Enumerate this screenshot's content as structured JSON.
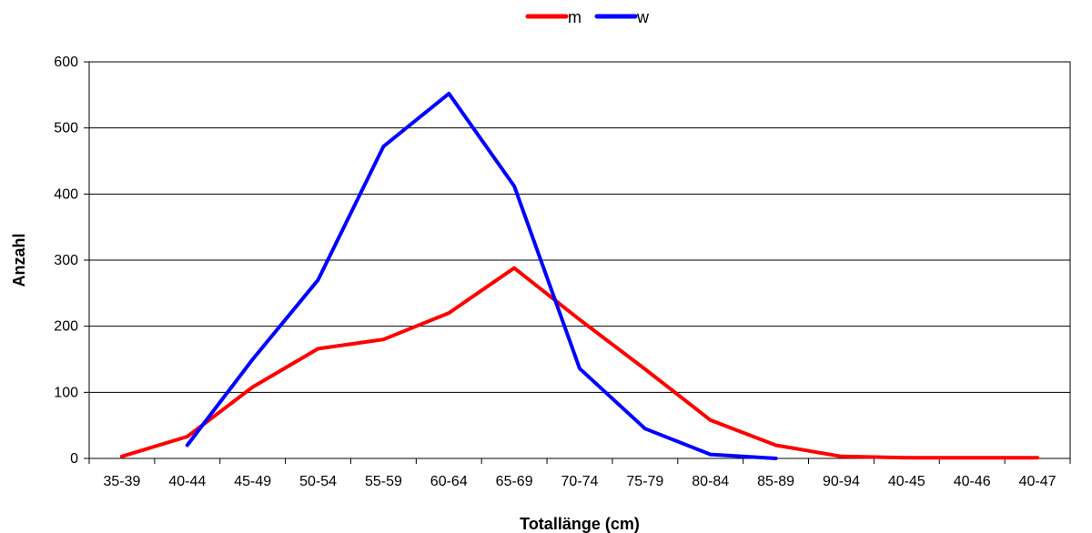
{
  "chart_data": {
    "type": "line",
    "title": "",
    "xlabel": "Totallänge (cm)",
    "ylabel": "Anzahl",
    "categories": [
      "35-39",
      "40-44",
      "45-49",
      "50-54",
      "55-59",
      "60-64",
      "65-69",
      "70-74",
      "75-79",
      "80-84",
      "85-89",
      "90-94",
      "40-45",
      "40-46",
      "40-47"
    ],
    "yticks": [
      "0",
      "100",
      "200",
      "300",
      "400",
      "500",
      "600"
    ],
    "ylim": [
      0,
      600
    ],
    "grid": "horizontal",
    "legend_position": "top-center",
    "series": [
      {
        "name": "m",
        "color": "#ff0000",
        "values": [
          3,
          33,
          108,
          166,
          180,
          220,
          288,
          210,
          135,
          58,
          20,
          3,
          1,
          1,
          1
        ]
      },
      {
        "name": "w",
        "color": "#0000ff",
        "values": [
          null,
          20,
          150,
          270,
          472,
          552,
          412,
          136,
          45,
          6,
          0,
          null,
          null,
          null,
          null
        ]
      }
    ]
  }
}
